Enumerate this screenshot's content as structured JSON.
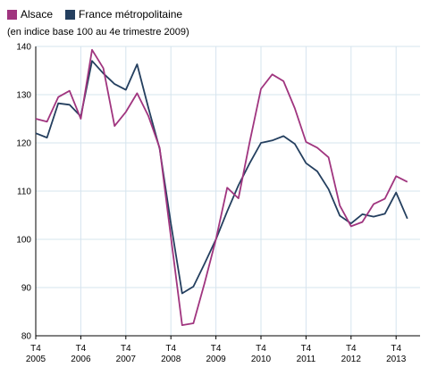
{
  "chart_data": {
    "type": "line",
    "subtitle": "(en indice base 100 au 4e trimestre 2009)",
    "x_ticks": [
      {
        "line1": "T4",
        "line2": "2005"
      },
      {
        "line1": "T4",
        "line2": "2006"
      },
      {
        "line1": "T4",
        "line2": "2007"
      },
      {
        "line1": "T4",
        "line2": "2008"
      },
      {
        "line1": "T4",
        "line2": "2009"
      },
      {
        "line1": "T4",
        "line2": "2010"
      },
      {
        "line1": "T4",
        "line2": "2011"
      },
      {
        "line1": "T4",
        "line2": "2012"
      },
      {
        "line1": "T4",
        "line2": "2013"
      }
    ],
    "y_ticks": [
      80,
      90,
      100,
      110,
      120,
      130,
      140
    ],
    "ylim": [
      80,
      140
    ],
    "grid": true,
    "legend_position": "top-left",
    "x_labels_per_quarter": "T4 2005 through Q2 2014, quarterly",
    "series": [
      {
        "name": "Alsace",
        "color": "#a0357f",
        "values": [
          125.0,
          124.4,
          129.5,
          130.8,
          125.0,
          139.3,
          135.5,
          123.5,
          126.4,
          130.3,
          125.6,
          119.0,
          100.5,
          82.2,
          82.6,
          91.0,
          100.0,
          110.7,
          108.5,
          120.2,
          131.2,
          134.2,
          132.8,
          127.2,
          120.2,
          119.0,
          117.0,
          107.0,
          102.7,
          103.6,
          107.3,
          108.4,
          113.1,
          111.9
        ]
      },
      {
        "name": "France métropolitaine",
        "color": "#243f5f",
        "values": [
          122.0,
          121.1,
          128.2,
          127.9,
          125.5,
          137.0,
          134.4,
          132.2,
          131.0,
          136.3,
          127.3,
          118.8,
          103.3,
          88.8,
          90.2,
          95.0,
          100.0,
          105.8,
          111.2,
          115.8,
          120.0,
          120.5,
          121.4,
          119.8,
          115.8,
          114.1,
          110.4,
          104.9,
          103.3,
          105.2,
          104.7,
          105.3,
          109.7,
          104.3
        ]
      }
    ]
  }
}
